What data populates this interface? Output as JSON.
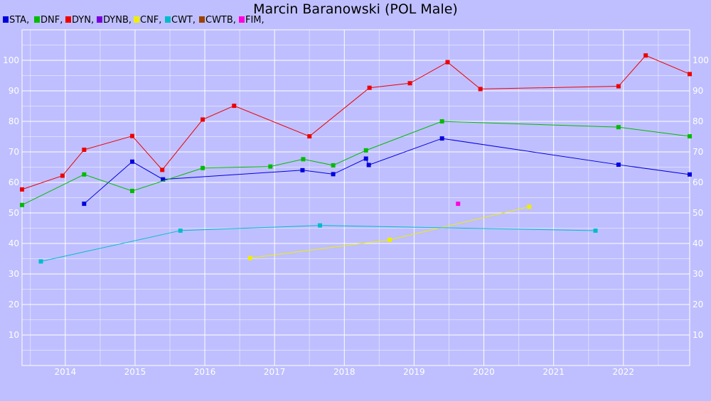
{
  "chart_data": {
    "type": "line",
    "title": "Marcin Baranowski (POL Male)",
    "xlabel": "",
    "ylabel": "",
    "xlim": [
      2013.38,
      2022.95
    ],
    "ylim": [
      0,
      110
    ],
    "x_ticks": [
      2014,
      2015,
      2016,
      2017,
      2018,
      2019,
      2020,
      2021,
      2022
    ],
    "y_ticks": [
      10,
      20,
      30,
      40,
      50,
      60,
      70,
      80,
      90,
      100
    ],
    "grid": true,
    "legend_position": "top-left",
    "legend": [
      "STA,",
      "DNF,",
      "DYN,",
      "DYNB,",
      "CNF,",
      "CWT,",
      "CWTB,",
      "FIM,"
    ],
    "series": [
      {
        "name": "STA",
        "color": "#0000dd",
        "points": [
          [
            2014.27,
            53
          ],
          [
            2014.96,
            66.8
          ],
          [
            2015.4,
            61
          ],
          [
            2017.4,
            64
          ],
          [
            2017.84,
            62.7
          ],
          [
            2018.31,
            67.8
          ],
          [
            2018.35,
            65.7
          ],
          [
            2019.4,
            74.4
          ],
          [
            2021.93,
            65.8
          ],
          [
            2022.95,
            62.6
          ]
        ]
      },
      {
        "name": "DNF",
        "color": "#00bb00",
        "points": [
          [
            2013.38,
            52.6
          ],
          [
            2014.27,
            62.6
          ],
          [
            2014.96,
            57.2
          ],
          [
            2015.97,
            64.7
          ],
          [
            2016.94,
            65.2
          ],
          [
            2017.41,
            67.6
          ],
          [
            2017.84,
            65.6
          ],
          [
            2018.31,
            70.5
          ],
          [
            2019.4,
            80
          ],
          [
            2021.93,
            78.1
          ],
          [
            2022.95,
            75.1
          ]
        ]
      },
      {
        "name": "DYN",
        "color": "#ee0000",
        "points": [
          [
            2013.38,
            57.7
          ],
          [
            2013.96,
            62.2
          ],
          [
            2014.27,
            70.7
          ],
          [
            2014.96,
            75.2
          ],
          [
            2015.39,
            64.1
          ],
          [
            2015.97,
            80.6
          ],
          [
            2016.42,
            85.1
          ],
          [
            2017.5,
            75.1
          ],
          [
            2018.36,
            91
          ],
          [
            2018.94,
            92.5
          ],
          [
            2019.48,
            99.4
          ],
          [
            2019.95,
            90.6
          ],
          [
            2021.93,
            91.5
          ],
          [
            2022.32,
            101.6
          ],
          [
            2022.95,
            95.5
          ]
        ]
      },
      {
        "name": "DYNB",
        "color": "#7700dd",
        "points": []
      },
      {
        "name": "CNF",
        "color": "#eeee00",
        "points": [
          [
            2016.65,
            35.2
          ],
          [
            2018.65,
            41.2
          ],
          [
            2020.65,
            52
          ]
        ]
      },
      {
        "name": "CWT",
        "color": "#00bbcc",
        "points": [
          [
            2013.65,
            34.1
          ],
          [
            2015.65,
            44.2
          ],
          [
            2017.65,
            45.9
          ],
          [
            2021.6,
            44.2
          ]
        ]
      },
      {
        "name": "CWTB",
        "color": "#994400",
        "points": []
      },
      {
        "name": "FIM",
        "color": "#ff00dd",
        "points": [
          [
            2019.63,
            53
          ]
        ]
      }
    ]
  }
}
